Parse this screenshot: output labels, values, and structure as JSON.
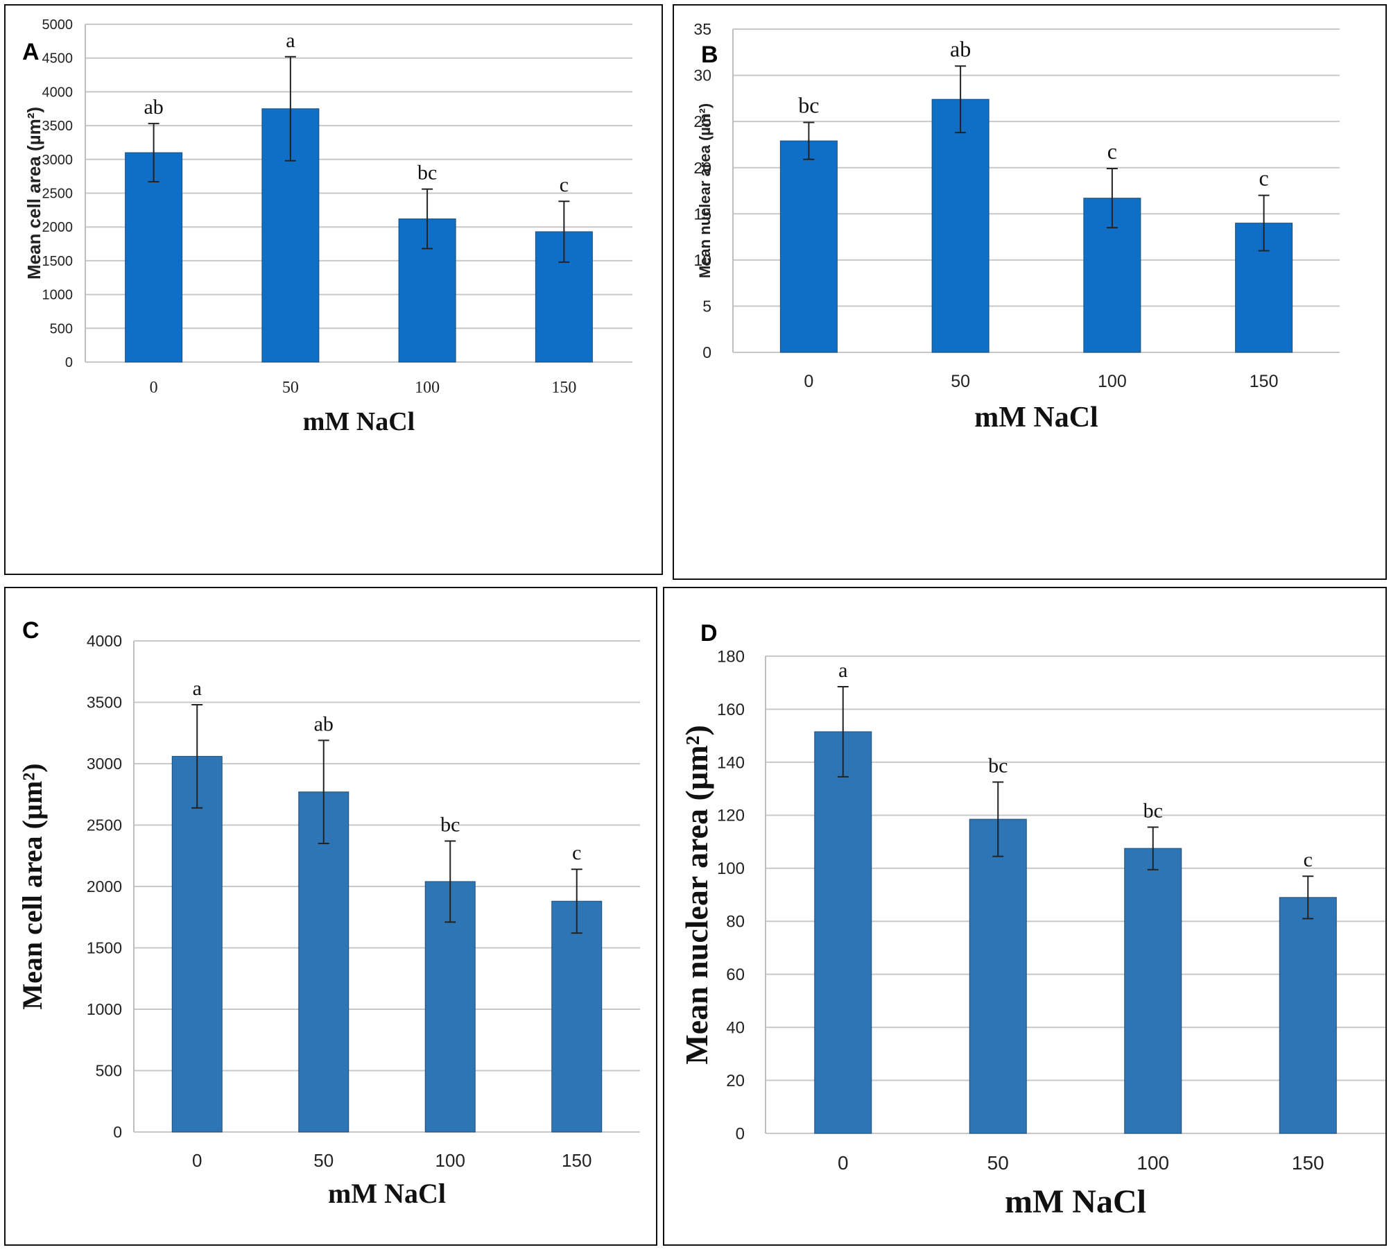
{
  "colors": {
    "bar_blue": "#0f6fc6",
    "bar_steel": "#2e75b6",
    "grid": "#c8c8c8",
    "frame": "#111111"
  },
  "chart_data": [
    {
      "panel": "A",
      "type": "bar",
      "title": "",
      "xlabel": "mM NaCl",
      "ylabel": "Mean  cell area (µm²)",
      "categories": [
        "0",
        "50",
        "100",
        "150"
      ],
      "values": [
        3100,
        3750,
        2120,
        1930
      ],
      "errors": [
        430,
        770,
        440,
        450
      ],
      "letters": [
        "ab",
        "a",
        "bc",
        "c"
      ],
      "ylim": [
        0,
        5000
      ],
      "yticks": [
        0,
        500,
        1000,
        1500,
        2000,
        2500,
        3000,
        3500,
        4000,
        4500,
        5000
      ],
      "grid": true
    },
    {
      "panel": "B",
      "type": "bar",
      "title": "",
      "xlabel": "mM NaCl",
      "ylabel": "Mean nuclear area (µm²)",
      "categories": [
        "0",
        "50",
        "100",
        "150"
      ],
      "values": [
        22.9,
        27.4,
        16.7,
        14.0
      ],
      "errors": [
        2.0,
        3.6,
        3.2,
        3.0
      ],
      "letters": [
        "bc",
        "ab",
        "c",
        "c"
      ],
      "ylim": [
        0,
        35
      ],
      "yticks": [
        0,
        5,
        10,
        15,
        20,
        25,
        30,
        35
      ],
      "grid": true
    },
    {
      "panel": "C",
      "type": "bar",
      "title": "",
      "xlabel": "mM NaCl",
      "ylabel": "Mean cell area (µm²)",
      "categories": [
        "0",
        "50",
        "100",
        "150"
      ],
      "values": [
        3060,
        2770,
        2040,
        1880
      ],
      "errors": [
        420,
        420,
        330,
        260
      ],
      "letters": [
        "a",
        "ab",
        "bc",
        "c"
      ],
      "ylim": [
        0,
        4000
      ],
      "yticks": [
        0,
        500,
        1000,
        1500,
        2000,
        2500,
        3000,
        3500,
        4000
      ],
      "grid": true
    },
    {
      "panel": "D",
      "type": "bar",
      "title": "",
      "xlabel": "mM NaCl",
      "ylabel": "Mean nuclear area (µm²)",
      "categories": [
        "0",
        "50",
        "100",
        "150"
      ],
      "values": [
        151.5,
        118.5,
        107.5,
        89.0
      ],
      "errors": [
        17,
        14,
        8,
        8
      ],
      "letters": [
        "a",
        "bc",
        "bc",
        "c"
      ],
      "ylim": [
        0,
        180
      ],
      "yticks": [
        0,
        20,
        40,
        60,
        80,
        100,
        120,
        140,
        160,
        180
      ],
      "grid": true
    }
  ]
}
